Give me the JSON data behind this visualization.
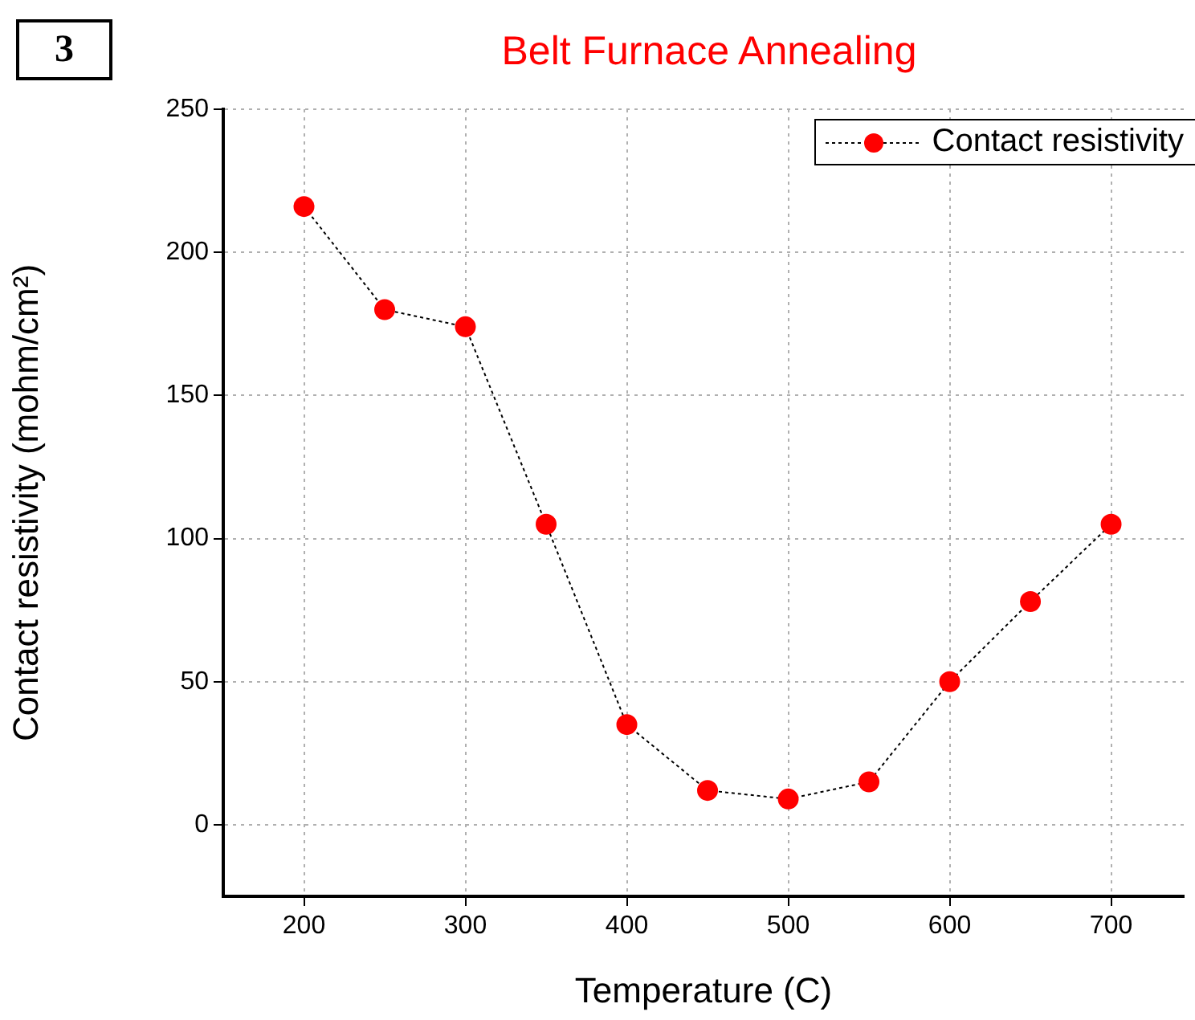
{
  "chart_data": {
    "type": "line",
    "title": "Belt Furnace Annealing",
    "xlabel": "Temperature (C)",
    "ylabel": "Contact resistivity (mohm/cm²)",
    "annotations": [
      "3"
    ],
    "x": [
      200,
      250,
      300,
      350,
      400,
      450,
      500,
      550,
      600,
      650,
      700
    ],
    "series": [
      {
        "name": "Contact resistivity",
        "color": "#ff0000",
        "values": [
          216,
          180,
          174,
          105,
          35,
          12,
          9,
          15,
          50,
          78,
          105
        ]
      }
    ],
    "xlim": [
      150,
      745
    ],
    "ylim": [
      -25,
      250
    ],
    "xticks": [
      200,
      300,
      400,
      500,
      600,
      700
    ],
    "yticks": [
      0,
      50,
      100,
      150,
      200,
      250
    ],
    "grid": true,
    "legend": "top right",
    "marker": "circle",
    "line_style": "dotted"
  }
}
